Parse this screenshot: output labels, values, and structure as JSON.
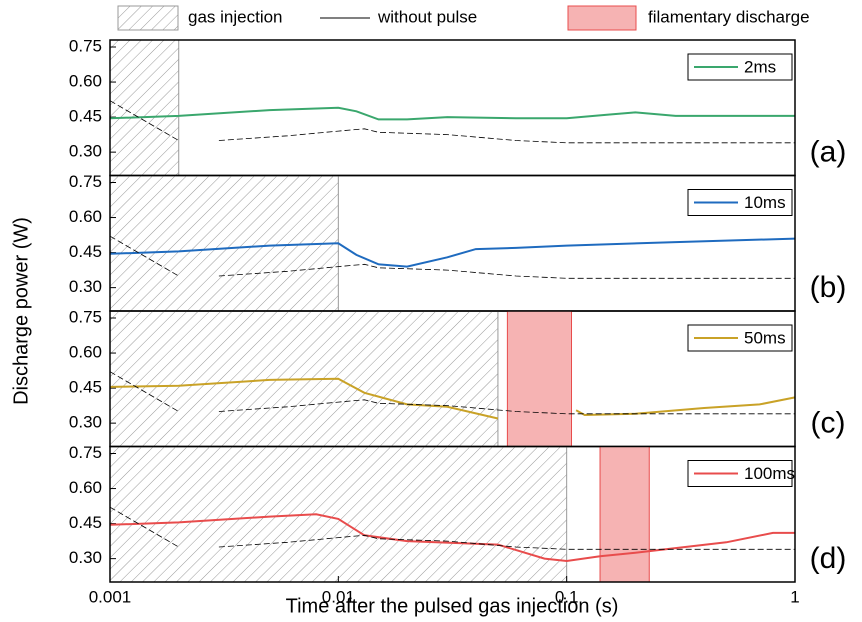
{
  "chart_data": [
    {
      "type": "line",
      "ylabel": "Discharge power (W)",
      "panel_label": "(a)",
      "xscale": "log",
      "xlim": [
        0.001,
        1
      ],
      "ylim": [
        0.2,
        0.78
      ],
      "yticks": [
        {
          "value": 0.3,
          "label": "0.30"
        },
        {
          "value": 0.45,
          "label": "0.45"
        },
        {
          "value": 0.6,
          "label": "0.60"
        },
        {
          "value": 0.75,
          "label": "0.75"
        }
      ],
      "regions": [
        {
          "name": "gas injection",
          "x": [
            0.001,
            0.002
          ]
        }
      ],
      "series": [
        {
          "name": "2ms",
          "color": "#3aa76d",
          "x": [
            0.001,
            0.002,
            0.005,
            0.01,
            0.012,
            0.015,
            0.02,
            0.03,
            0.06,
            0.1,
            0.15,
            0.2,
            0.3,
            0.5,
            1
          ],
          "values": [
            0.445,
            0.455,
            0.48,
            0.49,
            0.475,
            0.44,
            0.44,
            0.45,
            0.445,
            0.445,
            0.46,
            0.47,
            0.455,
            0.455,
            0.455
          ]
        },
        {
          "name": "without pulse",
          "color": "#000000",
          "x": [
            0.001,
            0.002,
            0.0025,
            0.003,
            0.006,
            0.01,
            0.013,
            0.015,
            0.03,
            0.06,
            0.1,
            1
          ],
          "values": [
            0.52,
            0.35,
            null,
            0.35,
            0.37,
            0.39,
            0.4,
            0.385,
            0.375,
            0.35,
            0.34,
            0.34
          ]
        }
      ]
    },
    {
      "type": "line",
      "panel_label": "(b)",
      "xscale": "log",
      "xlim": [
        0.001,
        1
      ],
      "ylim": [
        0.2,
        0.78
      ],
      "yticks": [
        {
          "value": 0.3,
          "label": "0.30"
        },
        {
          "value": 0.45,
          "label": "0.45"
        },
        {
          "value": 0.6,
          "label": "0.60"
        },
        {
          "value": 0.75,
          "label": "0.75"
        }
      ],
      "regions": [
        {
          "x": [
            0.001,
            0.01
          ]
        }
      ],
      "series": [
        {
          "name": "10ms",
          "color": "#1f6bbf",
          "x": [
            0.001,
            0.002,
            0.005,
            0.01,
            0.012,
            0.015,
            0.02,
            0.03,
            0.04,
            0.06,
            0.1,
            0.3,
            1
          ],
          "values": [
            0.445,
            0.455,
            0.48,
            0.49,
            0.44,
            0.4,
            0.39,
            0.43,
            0.465,
            0.47,
            0.48,
            0.495,
            0.51
          ]
        },
        {
          "color": "#000000",
          "x": [
            0.001,
            0.002,
            0.0025,
            0.003,
            0.006,
            0.01,
            0.013,
            0.015,
            0.03,
            0.06,
            0.1,
            1
          ],
          "values": [
            0.52,
            0.35,
            null,
            0.35,
            0.37,
            0.39,
            0.4,
            0.385,
            0.375,
            0.35,
            0.34,
            0.34
          ]
        }
      ]
    },
    {
      "type": "line",
      "panel_label": "(c)",
      "xscale": "log",
      "xlim": [
        0.001,
        1
      ],
      "ylim": [
        0.2,
        0.78
      ],
      "yticks": [
        {
          "value": 0.3,
          "label": "0.30"
        },
        {
          "value": 0.45,
          "label": "0.45"
        },
        {
          "value": 0.6,
          "label": "0.60"
        },
        {
          "value": 0.75,
          "label": "0.75"
        }
      ],
      "regions": [
        {
          "x": [
            0.001,
            0.05
          ]
        },
        {
          "name": "filamentary discharge",
          "x": [
            0.055,
            0.105
          ]
        }
      ],
      "series": [
        {
          "name": "50ms",
          "color": "#c9a227",
          "x": [
            0.001,
            0.002,
            0.005,
            0.01,
            0.013,
            0.02,
            0.03,
            0.05,
            0.08,
            0.11,
            0.12,
            0.2,
            0.4,
            0.7,
            1
          ],
          "values": [
            0.455,
            0.46,
            0.485,
            0.49,
            0.43,
            0.38,
            0.37,
            0.32,
            null,
            0.355,
            0.335,
            0.34,
            0.365,
            0.38,
            0.41
          ]
        },
        {
          "color": "#000000",
          "x": [
            0.001,
            0.002,
            0.0025,
            0.003,
            0.006,
            0.01,
            0.013,
            0.015,
            0.03,
            0.06,
            0.1,
            1
          ],
          "values": [
            0.52,
            0.35,
            null,
            0.35,
            0.37,
            0.39,
            0.4,
            0.385,
            0.375,
            0.35,
            0.34,
            0.34
          ]
        }
      ]
    },
    {
      "type": "line",
      "panel_label": "(d)",
      "xlabel": "Time after the pulsed gas injection (s)",
      "xscale": "log",
      "xlim": [
        0.001,
        1
      ],
      "xticks": [
        0.001,
        0.01,
        0.1,
        1
      ],
      "ylim": [
        0.2,
        0.78
      ],
      "yticks": [
        {
          "value": 0.3,
          "label": "0.30"
        },
        {
          "value": 0.45,
          "label": "0.45"
        },
        {
          "value": 0.6,
          "label": "0.60"
        },
        {
          "value": 0.75,
          "label": "0.75"
        }
      ],
      "regions": [
        {
          "x": [
            0.001,
            0.1
          ]
        },
        {
          "x": [
            0.14,
            0.23
          ]
        }
      ],
      "series": [
        {
          "name": "100ms",
          "color": "#e84c4c",
          "x": [
            0.001,
            0.002,
            0.005,
            0.008,
            0.01,
            0.013,
            0.02,
            0.05,
            0.08,
            0.1,
            0.14,
            0.2,
            0.5,
            0.8,
            1
          ],
          "values": [
            0.445,
            0.455,
            0.48,
            0.49,
            0.47,
            0.4,
            0.375,
            0.36,
            0.3,
            0.29,
            0.31,
            0.325,
            0.37,
            0.41,
            0.41
          ]
        },
        {
          "color": "#000000",
          "x": [
            0.001,
            0.002,
            0.0025,
            0.003,
            0.006,
            0.01,
            0.013,
            0.015,
            0.03,
            0.06,
            0.1,
            1
          ],
          "values": [
            0.52,
            0.35,
            null,
            0.35,
            0.37,
            0.39,
            0.4,
            0.385,
            0.375,
            0.35,
            0.34,
            0.34
          ]
        }
      ]
    }
  ]
}
